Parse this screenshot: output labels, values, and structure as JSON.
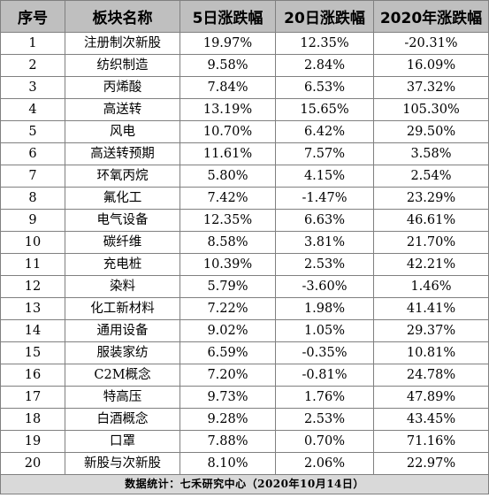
{
  "headers": [
    "序号",
    "板块名称",
    "5日涨跌幅",
    "20日涨跌幅",
    "2020年涨跌幅"
  ],
  "rows": [
    [
      "1",
      "注册制次新股",
      "19.97%",
      "12.35%",
      "-20.31%"
    ],
    [
      "2",
      "纺织制造",
      "9.58%",
      "2.84%",
      "16.09%"
    ],
    [
      "3",
      "丙烯酸",
      "7.84%",
      "6.53%",
      "37.32%"
    ],
    [
      "4",
      "高送转",
      "13.19%",
      "15.65%",
      "105.30%"
    ],
    [
      "5",
      "风电",
      "10.70%",
      "6.42%",
      "29.50%"
    ],
    [
      "6",
      "高送转预期",
      "11.61%",
      "7.57%",
      "3.58%"
    ],
    [
      "7",
      "环氧丙烷",
      "5.80%",
      "4.15%",
      "2.54%"
    ],
    [
      "8",
      "氟化工",
      "7.42%",
      "-1.47%",
      "23.29%"
    ],
    [
      "9",
      "电气设备",
      "12.35%",
      "6.63%",
      "46.61%"
    ],
    [
      "10",
      "碳纤维",
      "8.58%",
      "3.81%",
      "21.70%"
    ],
    [
      "11",
      "充电桩",
      "10.39%",
      "2.53%",
      "42.21%"
    ],
    [
      "12",
      "染料",
      "5.79%",
      "-3.60%",
      "1.46%"
    ],
    [
      "13",
      "化工新材料",
      "7.22%",
      "1.98%",
      "41.41%"
    ],
    [
      "14",
      "通用设备",
      "9.02%",
      "1.05%",
      "29.37%"
    ],
    [
      "15",
      "服装家纺",
      "6.59%",
      "-0.35%",
      "10.81%"
    ],
    [
      "16",
      "C2M概念",
      "7.20%",
      "-0.81%",
      "24.78%"
    ],
    [
      "17",
      "特高压",
      "9.73%",
      "1.76%",
      "47.89%"
    ],
    [
      "18",
      "白酒概念",
      "9.28%",
      "2.53%",
      "43.45%"
    ],
    [
      "19",
      "口罩",
      "7.88%",
      "0.70%",
      "71.16%"
    ],
    [
      "20",
      "新股与次新股",
      "8.10%",
      "2.06%",
      "22.97%"
    ]
  ],
  "footer": "数据统计：七禾研究中心（2020年10月14日）"
}
